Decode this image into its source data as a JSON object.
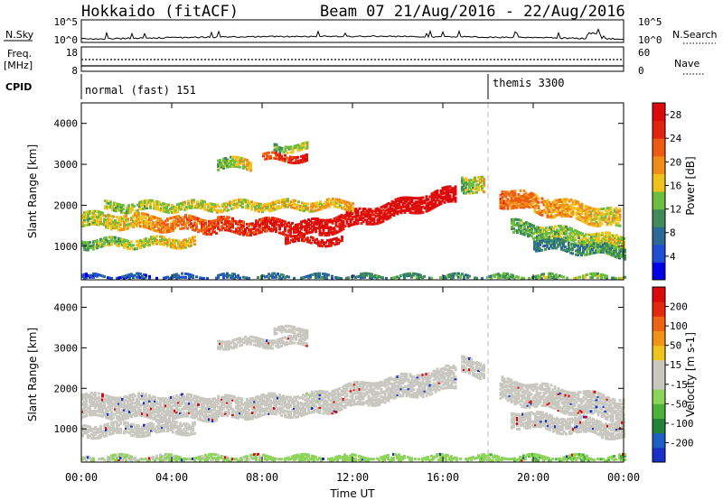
{
  "header": {
    "station": "Hokkaido (fitACF)",
    "beam_info": "Beam 07 21/Aug/2016 - 22/Aug/2016"
  },
  "strips": {
    "nsky_label": "N.Sky",
    "nsky_ticks": [
      "10^5",
      "10^0"
    ],
    "nsearch_label": "N.Search",
    "nsearch_ticks": [
      "10^5",
      "10^0"
    ],
    "freq_label_1": "Freq.",
    "freq_label_2": "[MHz]",
    "freq_ticks": [
      "18",
      "8"
    ],
    "nave_label": "Nave",
    "nave_ticks": [
      "60",
      "0"
    ],
    "cpid_label": "CPID",
    "cpid_segments": [
      {
        "label": "normal (fast) 151",
        "start_hour": 0
      },
      {
        "label": "themis 3300",
        "start_hour": 18
      }
    ]
  },
  "chart_data": [
    {
      "type": "heatmap",
      "name": "power",
      "xlabel": "Time UT",
      "ylabel": "Slant Range [km]",
      "x_range_hours": [
        0,
        24
      ],
      "x_ticks": [
        "00:00",
        "04:00",
        "08:00",
        "12:00",
        "16:00",
        "20:00",
        "00:00"
      ],
      "ylim": [
        180,
        4500
      ],
      "y_ticks": [
        1000,
        2000,
        3000,
        4000
      ],
      "colorbar_label": "Power [dB]",
      "colorbar_ticks": [
        "4",
        "8",
        "12",
        "16",
        "20",
        "24",
        "28"
      ],
      "colorbar_range": [
        0,
        30
      ],
      "colors": [
        "#0000e6",
        "#1e4fd2",
        "#2a6a96",
        "#3f8c5a",
        "#6cbf3e",
        "#f0c21e",
        "#f08c18",
        "#ec5a14",
        "#e4230e",
        "#dc0a0a"
      ],
      "bands": [
        {
          "t0": 0.0,
          "t1": 6.0,
          "r0": 1700,
          "r1": 1550,
          "w": 350,
          "p0": 14,
          "p1": 24
        },
        {
          "t0": 6.0,
          "t1": 10.5,
          "r0": 1550,
          "r1": 1500,
          "w": 350,
          "p0": 24,
          "p1": 29
        },
        {
          "t0": 10.5,
          "t1": 16.5,
          "r0": 1500,
          "r1": 2300,
          "w": 380,
          "p0": 28,
          "p1": 30
        },
        {
          "t0": 9.0,
          "t1": 11.5,
          "r0": 1200,
          "r1": 1150,
          "w": 150,
          "p0": 27,
          "p1": 29
        },
        {
          "t0": 0.0,
          "t1": 5.0,
          "r0": 1100,
          "r1": 1150,
          "w": 200,
          "p0": 12,
          "p1": 18
        },
        {
          "t0": 1.0,
          "t1": 12.0,
          "r0": 2000,
          "r1": 2050,
          "w": 200,
          "p0": 14,
          "p1": 18
        },
        {
          "t0": 6.0,
          "t1": 7.5,
          "r0": 3050,
          "r1": 3050,
          "w": 250,
          "p0": 12,
          "p1": 18
        },
        {
          "t0": 8.0,
          "t1": 10.0,
          "r0": 3200,
          "r1": 3200,
          "w": 150,
          "p0": 22,
          "p1": 28
        },
        {
          "t0": 8.5,
          "t1": 10.0,
          "r0": 3450,
          "r1": 3450,
          "w": 150,
          "p0": 12,
          "p1": 16
        },
        {
          "t0": 16.8,
          "t1": 17.8,
          "r0": 2600,
          "r1": 2500,
          "w": 400,
          "p0": 12,
          "p1": 18
        },
        {
          "t0": 18.5,
          "t1": 23.8,
          "r0": 2250,
          "r1": 1700,
          "w": 450,
          "p0": 22,
          "p1": 16
        },
        {
          "t0": 19.0,
          "t1": 24.0,
          "r0": 1500,
          "r1": 1100,
          "w": 350,
          "p0": 12,
          "p1": 16
        },
        {
          "t0": 20.0,
          "t1": 24.0,
          "r0": 1100,
          "r1": 900,
          "w": 250,
          "p0": 8,
          "p1": 12
        },
        {
          "t0": 0.0,
          "t1": 24.0,
          "r0": 280,
          "r1": 280,
          "w": 130,
          "p0": 4,
          "p1": 14
        }
      ]
    },
    {
      "type": "heatmap",
      "name": "velocity",
      "xlabel": "Time UT",
      "ylabel": "Slant Range [km]",
      "x_range_hours": [
        0,
        24
      ],
      "x_ticks": [
        "00:00",
        "04:00",
        "08:00",
        "12:00",
        "16:00",
        "20:00",
        "00:00"
      ],
      "ylim": [
        180,
        4500
      ],
      "y_ticks": [
        1000,
        2000,
        3000,
        4000
      ],
      "colorbar_label": "Velocity [m s-1]",
      "colorbar_ticks": [
        "200",
        "100",
        "50",
        "15",
        "-15",
        "-50",
        "-100",
        "-200"
      ],
      "colorbar_range": [
        -250,
        250
      ],
      "colors": [
        "#1a2fc8",
        "#1e5ec0",
        "#23823c",
        "#4cb23a",
        "#8cd45a",
        "#c8c8c0",
        "#c8c8c0",
        "#f0c41e",
        "#f09418",
        "#ec6414",
        "#e4280e",
        "#dc0a0a"
      ],
      "bands": [
        {
          "t0": 0.0,
          "t1": 6.0,
          "r0": 1600,
          "r1": 1550,
          "w": 550,
          "v0": 0,
          "v1": -10
        },
        {
          "t0": 6.0,
          "t1": 10.5,
          "r0": 1550,
          "r1": 1650,
          "w": 500,
          "v0": -10,
          "v1": -30
        },
        {
          "t0": 10.5,
          "t1": 16.5,
          "r0": 1700,
          "r1": 2300,
          "w": 550,
          "v0": 0,
          "v1": 5
        },
        {
          "t0": 0.0,
          "t1": 5.0,
          "r0": 1000,
          "r1": 1100,
          "w": 300,
          "v0": -5,
          "v1": 5
        },
        {
          "t0": 6.0,
          "t1": 10.0,
          "r0": 3150,
          "r1": 3200,
          "w": 200,
          "v0": -10,
          "v1": 0
        },
        {
          "t0": 8.5,
          "t1": 10.0,
          "r0": 3450,
          "r1": 3450,
          "w": 150,
          "v0": 0,
          "v1": 0
        },
        {
          "t0": 16.8,
          "t1": 17.8,
          "r0": 2600,
          "r1": 2500,
          "w": 400,
          "v0": 0,
          "v1": 10
        },
        {
          "t0": 18.5,
          "t1": 24.0,
          "r0": 2000,
          "r1": 1500,
          "w": 550,
          "v0": 0,
          "v1": -5
        },
        {
          "t0": 19.0,
          "t1": 24.0,
          "r0": 1300,
          "r1": 1000,
          "w": 400,
          "v0": 0,
          "v1": 0
        },
        {
          "t0": 0.0,
          "t1": 24.0,
          "r0": 300,
          "r1": 300,
          "w": 180,
          "v0": -40,
          "v1": -80
        }
      ]
    }
  ]
}
